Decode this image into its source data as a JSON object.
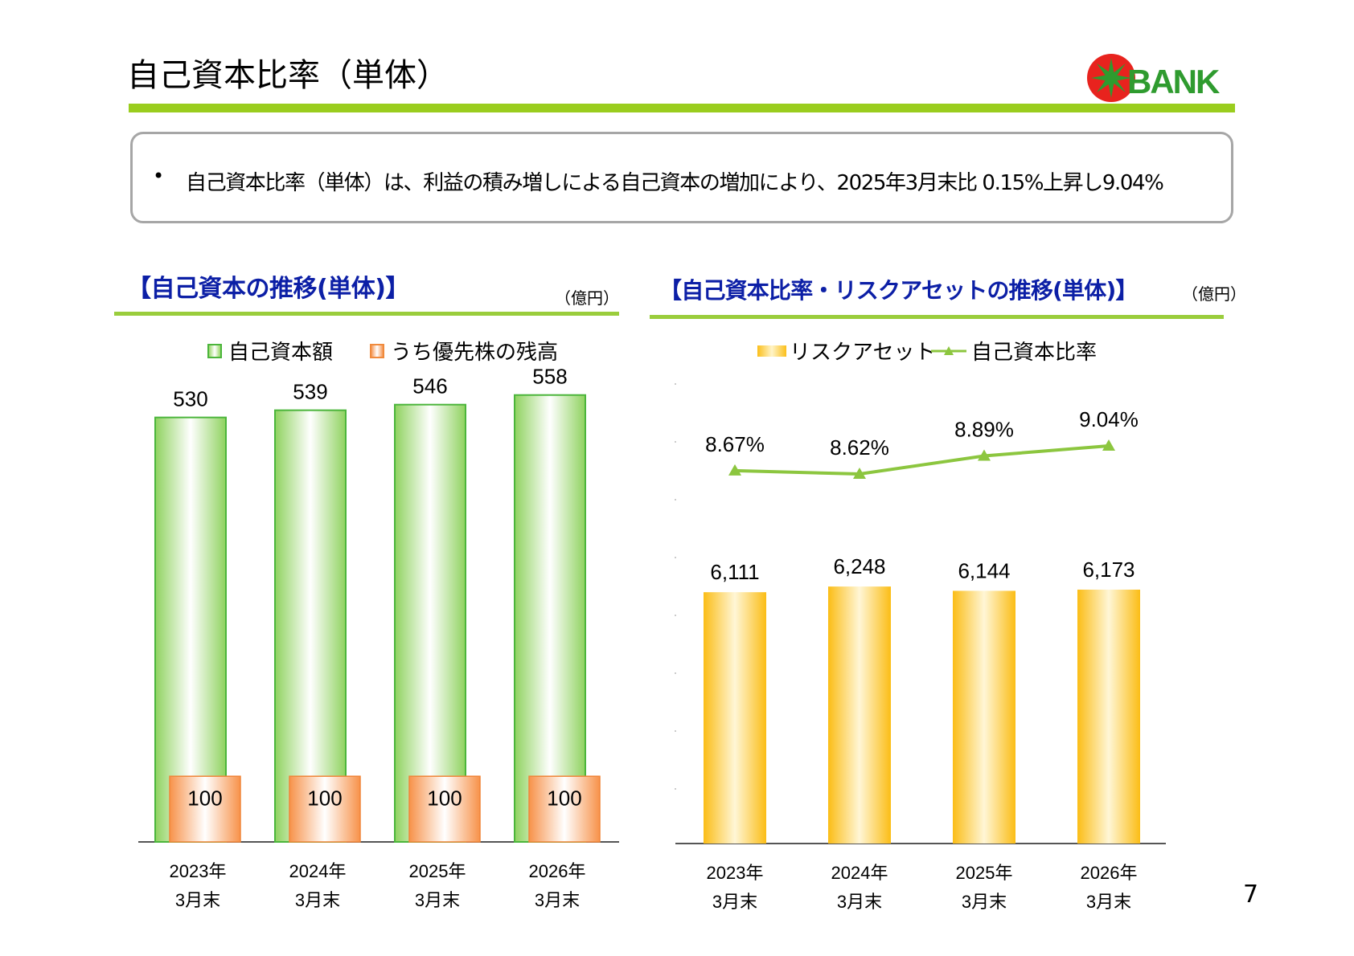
{
  "header": {
    "title": "自己資本比率（単体）",
    "logo_text": "BANK"
  },
  "summary": {
    "bullet": "•",
    "text": "自己資本比率（単体）は、利益の積み増しによる自己資本の増加により、2025年3月末比 0.15%上昇し9.04%"
  },
  "left_section": {
    "title": "【自己資本の推移(単体)】",
    "unit": "（億円）",
    "legend": [
      "自己資本額",
      "うち優先株の残高"
    ]
  },
  "right_section": {
    "title": "【自己資本比率・リスクアセットの推移(単体)】",
    "unit": "（億円）",
    "legend": [
      "リスクアセット",
      "自己資本比率"
    ]
  },
  "colors": {
    "accent_green": "#9acd1e",
    "title_blue": "#0c1fa6",
    "bar_green": "#5cc24a",
    "bar_orange": "#f08a3c",
    "bar_gold": "#fbbf1a",
    "line_green": "#8cc63f",
    "logo_red": "#e8231e"
  },
  "chart_data": [
    {
      "type": "bar",
      "categories": [
        "2023年\n3月末",
        "2024年\n3月末",
        "2025年\n3月末",
        "2026年\n3月末"
      ],
      "series": [
        {
          "name": "自己資本額",
          "values": [
            530,
            539,
            546,
            558
          ]
        },
        {
          "name": "うち優先株の残高",
          "values": [
            100,
            100,
            100,
            100
          ]
        }
      ],
      "ylim": [
        0,
        650
      ],
      "grid": false,
      "legend_position": "top"
    },
    {
      "type": "bar",
      "categories": [
        "2023年\n3月末",
        "2024年\n3月末",
        "2025年\n3月末",
        "2026年\n3月末"
      ],
      "series": [
        {
          "name": "リスクアセット",
          "values": [
            6111,
            6248,
            6144,
            6173
          ],
          "labels": [
            "6,111",
            "6,248",
            "6,144",
            "6,173"
          ]
        },
        {
          "name": "自己資本比率",
          "type": "line",
          "values": [
            8.67,
            8.62,
            8.89,
            9.04
          ],
          "labels": [
            "8.67%",
            "8.62%",
            "8.89%",
            "9.04%"
          ]
        }
      ],
      "ylim": [
        0,
        8000
      ],
      "grid": false,
      "legend_position": "top"
    }
  ],
  "page_number": "7"
}
